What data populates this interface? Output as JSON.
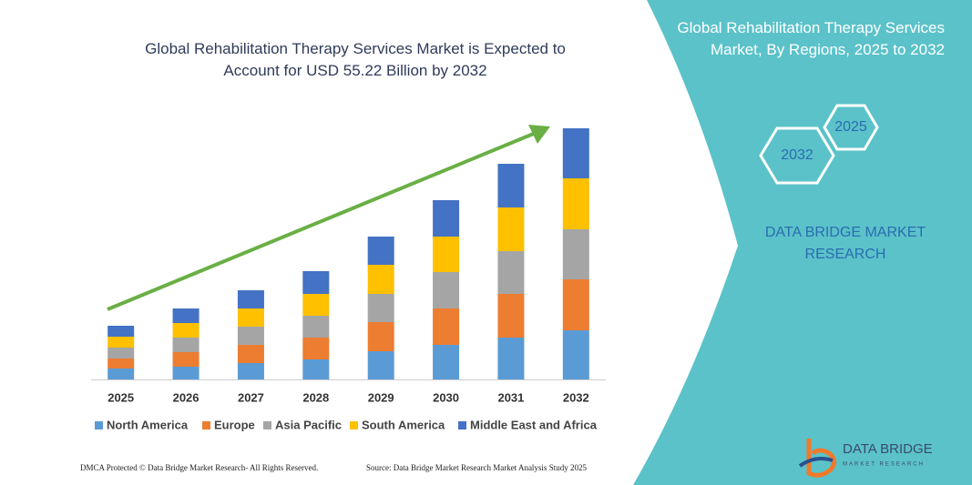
{
  "chart_data": {
    "type": "bar",
    "stacked": true,
    "title": "Global Rehabilitation Therapy Services Market is Expected to Account for USD 55.22 Billion by 2032",
    "categories": [
      "2025",
      "2026",
      "2027",
      "2028",
      "2029",
      "2030",
      "2031",
      "2032"
    ],
    "series": [
      {
        "name": "North America",
        "color": "#5b9bd5",
        "values": [
          12,
          14,
          18,
          22,
          31,
          38,
          46,
          54
        ]
      },
      {
        "name": "Europe",
        "color": "#ed7d31",
        "values": [
          11,
          16,
          20,
          24,
          32,
          40,
          48,
          56
        ]
      },
      {
        "name": "Asia Pacific",
        "color": "#a5a5a5",
        "values": [
          12,
          16,
          20,
          24,
          31,
          40,
          47,
          55
        ]
      },
      {
        "name": "South America",
        "color": "#ffc000",
        "values": [
          12,
          16,
          20,
          24,
          32,
          39,
          48,
          56
        ]
      },
      {
        "name": "Middle East and Africa",
        "color": "#4472c4",
        "values": [
          12,
          16,
          20,
          25,
          31,
          40,
          48,
          55
        ]
      }
    ],
    "ylim": [
      0,
      290
    ],
    "grid": false
  },
  "panel": {
    "title": "Global Rehabilitation Therapy Services Market, By Regions, 2025 to 2032",
    "hex_labels": [
      "2025",
      "2032"
    ],
    "brand": "DATA BRIDGE MARKET RESEARCH"
  },
  "logo": {
    "name": "DATA BRIDGE",
    "tagline": "MARKET RESEARCH"
  },
  "footer": {
    "left": "DMCA Protected © Data Bridge Market Research- All Rights Reserved.",
    "right": "Source: Data Bridge Market Research  Market Analysis Study 2025"
  }
}
